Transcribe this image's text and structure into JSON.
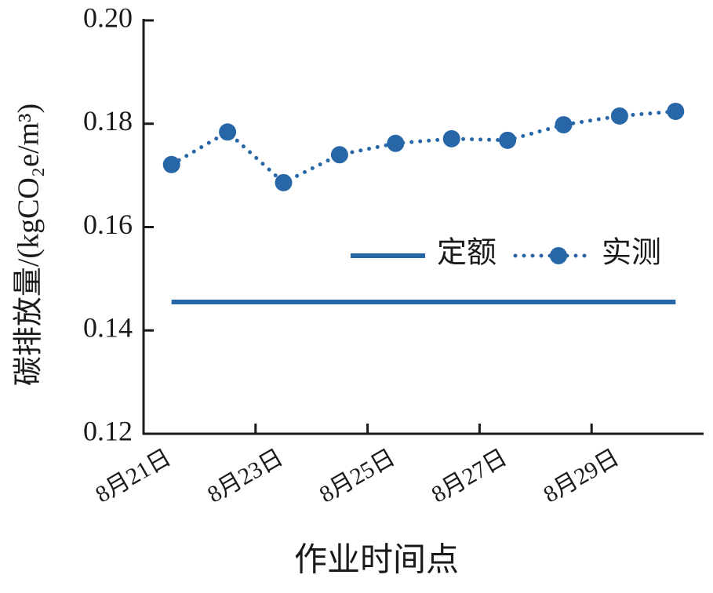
{
  "chart_data": {
    "type": "line",
    "x_label": "作业时间点",
    "y_label": "碳排放量/(kgCO₂e/m³)",
    "categories": [
      "8月21日",
      null,
      "8月23日",
      null,
      "8月25日",
      null,
      "8月27日",
      null,
      "8月29日",
      null
    ],
    "series": [
      {
        "name": "定额",
        "color": "#2767a8",
        "style": "solid",
        "values": [
          0.1455,
          0.1455,
          0.1455,
          0.1455,
          0.1455,
          0.1455,
          0.1455,
          0.1455,
          0.1455,
          0.1455
        ]
      },
      {
        "name": "实测",
        "color": "#2767a8",
        "style": "dotted",
        "marker": true,
        "values": [
          0.1721,
          0.1784,
          0.1686,
          0.174,
          0.1762,
          0.1771,
          0.1768,
          0.1798,
          0.1815,
          0.1824
        ]
      }
    ],
    "ylim": [
      0.12,
      0.2
    ],
    "yticks": [
      {
        "value": 0.12,
        "label": "0.12"
      },
      {
        "value": 0.14,
        "label": "0.14"
      },
      {
        "value": 0.16,
        "label": "0.16"
      },
      {
        "value": 0.18,
        "label": "0.18"
      },
      {
        "value": 0.2,
        "label": "0.20"
      }
    ],
    "grid": false,
    "legend": "right"
  }
}
